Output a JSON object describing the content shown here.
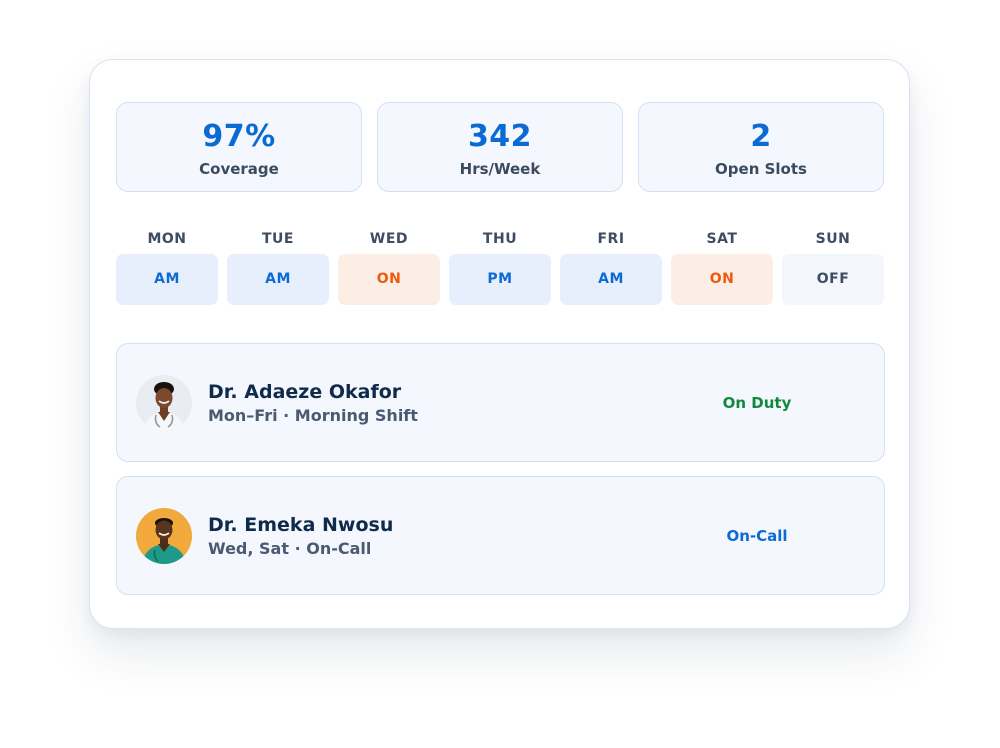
{
  "stats": [
    {
      "value": "97%",
      "label": "Coverage"
    },
    {
      "value": "342",
      "label": "Hrs/Week"
    },
    {
      "value": "2",
      "label": "Open Slots"
    }
  ],
  "schedule": [
    {
      "day": "MON",
      "shift": "AM",
      "tone": "blue"
    },
    {
      "day": "TUE",
      "shift": "AM",
      "tone": "blue"
    },
    {
      "day": "WED",
      "shift": "ON",
      "tone": "orange"
    },
    {
      "day": "THU",
      "shift": "PM",
      "tone": "blue"
    },
    {
      "day": "FRI",
      "shift": "AM",
      "tone": "blue"
    },
    {
      "day": "SAT",
      "shift": "ON",
      "tone": "orange"
    },
    {
      "day": "SUN",
      "shift": "OFF",
      "tone": "gray"
    }
  ],
  "doctors": [
    {
      "name": "Dr. Adaeze Okafor",
      "schedule": "Mon–Fri · Morning Shift",
      "status": "On Duty",
      "status_color": "#0f8a3c"
    },
    {
      "name": "Dr. Emeka Nwosu",
      "schedule": "Wed, Sat · On-Call",
      "status": "On-Call",
      "status_color": "#0b6bd3"
    }
  ],
  "colors": {
    "accent_blue": "#0b6bd3",
    "accent_orange": "#ec5a10",
    "status_green": "#0f8a3c"
  }
}
